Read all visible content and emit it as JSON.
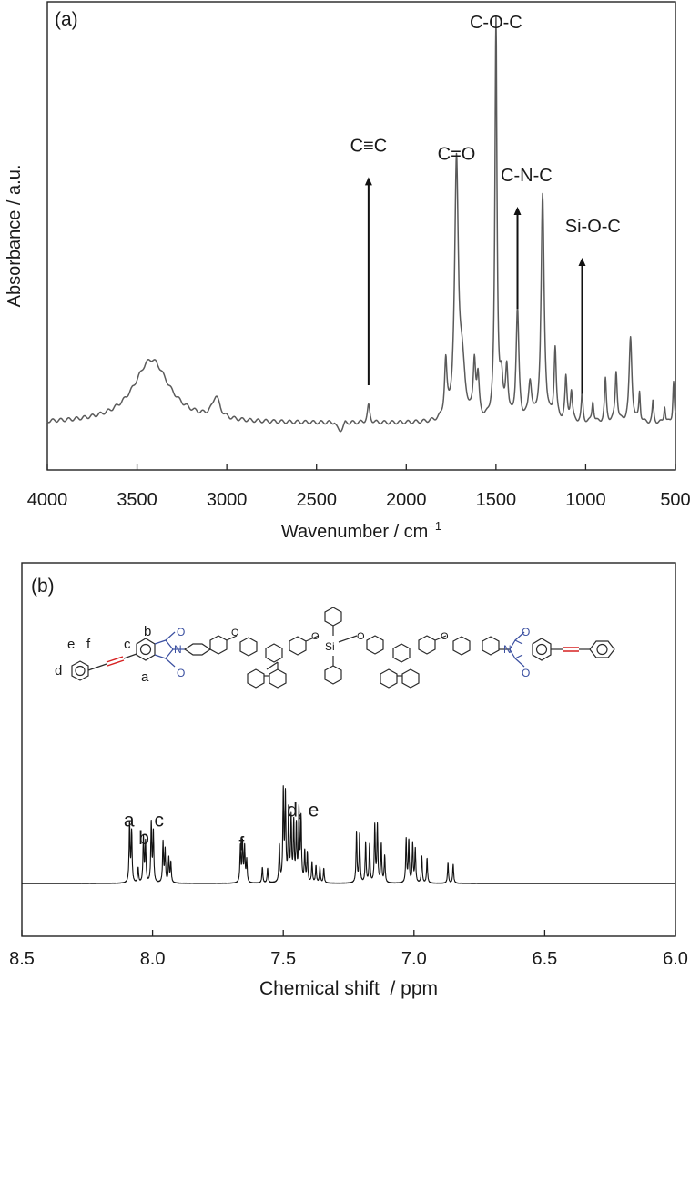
{
  "chart_data": [
    {
      "type": "line",
      "panel_label": "(a)",
      "xlabel": "Wavenumber / cm",
      "xlabel_sup": "−1",
      "ylabel": "Absorbance / a.u.",
      "xlim": [
        4000,
        500
      ],
      "x_reversed": true,
      "xticks": [
        4000,
        3500,
        3000,
        2500,
        2000,
        1500,
        1000,
        500
      ],
      "ylim": [
        0,
        1
      ],
      "baseline": 0.1,
      "peaks": [
        {
          "x": 3420,
          "y": 0.15,
          "w": 120
        },
        {
          "x": 3060,
          "y": 0.05,
          "w": 25
        },
        {
          "x": 2210,
          "y": 0.04,
          "w": 8
        },
        {
          "x": 1780,
          "y": 0.13,
          "w": 8
        },
        {
          "x": 1720,
          "y": 0.59,
          "w": 12
        },
        {
          "x": 1690,
          "y": 0.12,
          "w": 20
        },
        {
          "x": 1620,
          "y": 0.13,
          "w": 8
        },
        {
          "x": 1600,
          "y": 0.09,
          "w": 8
        },
        {
          "x": 1500,
          "y": 0.94,
          "w": 7
        },
        {
          "x": 1470,
          "y": 0.08,
          "w": 10
        },
        {
          "x": 1440,
          "y": 0.12,
          "w": 8
        },
        {
          "x": 1380,
          "y": 0.26,
          "w": 9
        },
        {
          "x": 1310,
          "y": 0.09,
          "w": 10
        },
        {
          "x": 1240,
          "y": 0.53,
          "w": 10
        },
        {
          "x": 1170,
          "y": 0.17,
          "w": 7
        },
        {
          "x": 1110,
          "y": 0.1,
          "w": 7
        },
        {
          "x": 1080,
          "y": 0.07,
          "w": 7
        },
        {
          "x": 1020,
          "y": 0.07,
          "w": 5
        },
        {
          "x": 960,
          "y": 0.05,
          "w": 6
        },
        {
          "x": 890,
          "y": 0.1,
          "w": 6
        },
        {
          "x": 830,
          "y": 0.12,
          "w": 7
        },
        {
          "x": 750,
          "y": 0.2,
          "w": 9
        },
        {
          "x": 700,
          "y": 0.07,
          "w": 5
        },
        {
          "x": 625,
          "y": 0.05,
          "w": 5
        },
        {
          "x": 560,
          "y": 0.04,
          "w": 5
        },
        {
          "x": 510,
          "y": 0.1,
          "w": 5
        }
      ],
      "annotations": [
        {
          "text": "C≡C",
          "x": 2210,
          "y": 0.74,
          "arrow": [
            0.19,
            0.68
          ]
        },
        {
          "text": "C=O",
          "x": 1720,
          "y": 0.72
        },
        {
          "text": "C-O-C",
          "x": 1500,
          "y": 1.03
        },
        {
          "text": "C-N-C",
          "x": 1330,
          "y": 0.67,
          "arrow_x": 1380,
          "arrow": [
            0.37,
            0.61
          ]
        },
        {
          "text": "Si-O-C",
          "x": 960,
          "y": 0.55,
          "arrow_x": 1020,
          "arrow": [
            0.17,
            0.49
          ]
        }
      ]
    },
    {
      "type": "line",
      "panel_label": "(b)",
      "xlabel": "Chemical shift  / ppm",
      "ylabel": "",
      "xlim": [
        8.5,
        6.0
      ],
      "x_reversed": true,
      "xticks": [
        "8.5",
        "8.0",
        "7.5",
        "7.0",
        "6.5",
        "6.0"
      ],
      "ylim": [
        0,
        1
      ],
      "baseline": 0.1,
      "peaks": [
        {
          "x": 8.088,
          "y": 0.53
        },
        {
          "x": 8.08,
          "y": 0.45
        },
        {
          "x": 8.055,
          "y": 0.13
        },
        {
          "x": 8.035,
          "y": 0.4
        },
        {
          "x": 8.027,
          "y": 0.36
        },
        {
          "x": 8.005,
          "y": 0.53
        },
        {
          "x": 7.997,
          "y": 0.45
        },
        {
          "x": 7.96,
          "y": 0.36
        },
        {
          "x": 7.952,
          "y": 0.29
        },
        {
          "x": 7.938,
          "y": 0.22
        },
        {
          "x": 7.93,
          "y": 0.18
        },
        {
          "x": 7.664,
          "y": 0.32
        },
        {
          "x": 7.656,
          "y": 0.35
        },
        {
          "x": 7.648,
          "y": 0.31
        },
        {
          "x": 7.64,
          "y": 0.2
        },
        {
          "x": 7.58,
          "y": 0.14
        },
        {
          "x": 7.56,
          "y": 0.13
        },
        {
          "x": 7.515,
          "y": 0.33
        },
        {
          "x": 7.5,
          "y": 0.8
        },
        {
          "x": 7.492,
          "y": 0.76
        },
        {
          "x": 7.48,
          "y": 0.63
        },
        {
          "x": 7.47,
          "y": 0.56
        },
        {
          "x": 7.46,
          "y": 0.52
        },
        {
          "x": 7.45,
          "y": 0.49
        },
        {
          "x": 7.44,
          "y": 0.63
        },
        {
          "x": 7.432,
          "y": 0.56
        },
        {
          "x": 7.418,
          "y": 0.27
        },
        {
          "x": 7.408,
          "y": 0.26
        },
        {
          "x": 7.39,
          "y": 0.18
        },
        {
          "x": 7.375,
          "y": 0.15
        },
        {
          "x": 7.36,
          "y": 0.14
        },
        {
          "x": 7.345,
          "y": 0.13
        },
        {
          "x": 7.22,
          "y": 0.45
        },
        {
          "x": 7.208,
          "y": 0.43
        },
        {
          "x": 7.185,
          "y": 0.36
        },
        {
          "x": 7.17,
          "y": 0.34
        },
        {
          "x": 7.15,
          "y": 0.51
        },
        {
          "x": 7.14,
          "y": 0.51
        },
        {
          "x": 7.125,
          "y": 0.34
        },
        {
          "x": 7.112,
          "y": 0.24
        },
        {
          "x": 7.03,
          "y": 0.39
        },
        {
          "x": 7.02,
          "y": 0.37
        },
        {
          "x": 7.005,
          "y": 0.35
        },
        {
          "x": 6.995,
          "y": 0.3
        },
        {
          "x": 6.97,
          "y": 0.24
        },
        {
          "x": 6.95,
          "y": 0.22
        },
        {
          "x": 6.87,
          "y": 0.18
        },
        {
          "x": 6.85,
          "y": 0.17
        }
      ],
      "annotations": [
        {
          "text": "a",
          "x": 8.09,
          "y": 0.61
        },
        {
          "text": "b",
          "x": 8.033,
          "y": 0.45
        },
        {
          "text": "c",
          "x": 7.975,
          "y": 0.61
        },
        {
          "text": "f",
          "x": 7.66,
          "y": 0.4
        },
        {
          "text": "d, e",
          "x": 7.425,
          "y": 0.7
        }
      ]
    }
  ],
  "structure": {
    "labels": [
      "a",
      "b",
      "c",
      "d",
      "e",
      "f"
    ],
    "atoms": [
      "O",
      "O",
      "N",
      "O",
      "O",
      "Si",
      "O",
      "O",
      "N",
      "O",
      "O"
    ]
  }
}
